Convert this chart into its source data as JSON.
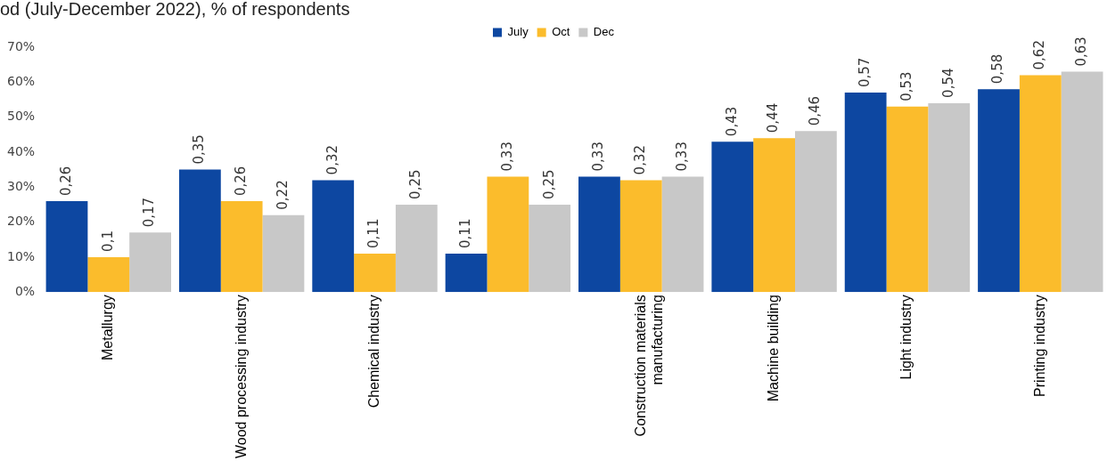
{
  "chart_data": {
    "type": "bar",
    "title": "od (July-December 2022), % of respondents",
    "categories": [
      "Metallurgy",
      "Wood processing industry",
      "Chemical industry",
      null,
      "Construction materials manufacturing",
      "Machine building",
      "Light industry",
      "Printing industry"
    ],
    "series": [
      {
        "name": "July",
        "color": "#0d47a1",
        "values": [
          0.26,
          0.35,
          0.32,
          0.11,
          0.33,
          0.43,
          0.57,
          0.58
        ],
        "value_labels": [
          "0,26",
          "0,35",
          "0,32",
          "0,11",
          "0,33",
          "0,43",
          "0,57",
          "0,58"
        ]
      },
      {
        "name": "Oct",
        "color": "#fbbc2c",
        "values": [
          0.1,
          0.26,
          0.11,
          0.33,
          0.32,
          0.44,
          0.53,
          0.62
        ],
        "value_labels": [
          "0,1",
          "0,26",
          "0,11",
          "0,33",
          "0,32",
          "0,44",
          "0,53",
          "0,62"
        ]
      },
      {
        "name": "Dec",
        "color": "#c8c8c8",
        "values": [
          0.17,
          0.22,
          0.25,
          0.25,
          0.33,
          0.46,
          0.54,
          0.63
        ],
        "value_labels": [
          "0,17",
          "0,22",
          "0,25",
          "0,25",
          "0,33",
          "0,46",
          "0,54",
          "0,63"
        ]
      }
    ],
    "ylim": [
      0,
      0.7
    ],
    "yticks": [
      {
        "value": 0,
        "label": "0%"
      },
      {
        "value": 0.1,
        "label": "10%"
      },
      {
        "value": 0.2,
        "label": "20%"
      },
      {
        "value": 0.3,
        "label": "30%"
      },
      {
        "value": 0.4,
        "label": "40%"
      },
      {
        "value": 0.5,
        "label": "50%"
      },
      {
        "value": 0.6,
        "label": "60%"
      },
      {
        "value": 0.7,
        "label": "70%"
      }
    ],
    "grid": false,
    "legend": "top"
  }
}
